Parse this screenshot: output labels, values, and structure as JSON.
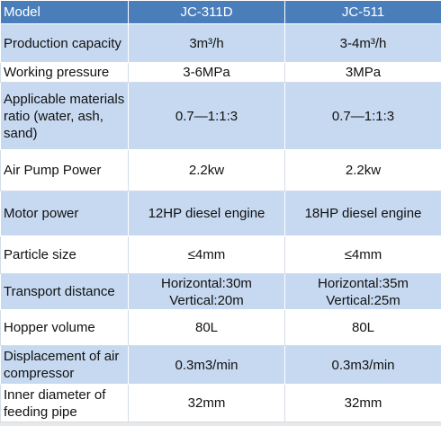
{
  "table": {
    "header": [
      "Model",
      "JC-311D",
      "JC-511"
    ],
    "rows": [
      [
        "Production capacity",
        "3m³/h",
        "3-4m³/h"
      ],
      [
        "Working pressure",
        "3-6MPa",
        "3MPa"
      ],
      [
        "Applicable materials ratio (water, ash, sand)",
        "0.7—1:1:3",
        "0.7—1:1:3"
      ],
      [
        "Air Pump Power",
        "2.2kw",
        "2.2kw"
      ],
      [
        "Motor power",
        "12HP diesel engine",
        "18HP diesel engine"
      ],
      [
        "Particle size",
        "≤4mm",
        "≤4mm"
      ],
      [
        "Transport distance",
        [
          "Horizontal:30m",
          "Vertical:20m"
        ],
        [
          "Horizontal:35m",
          "Vertical:25m"
        ]
      ],
      [
        "Hopper volume",
        "80L",
        "80L"
      ],
      [
        "Displacement of air compressor",
        "0.3m3/min",
        "0.3m3/min"
      ],
      [
        "Inner diameter of feeding pipe",
        "32mm",
        "32mm"
      ]
    ]
  }
}
